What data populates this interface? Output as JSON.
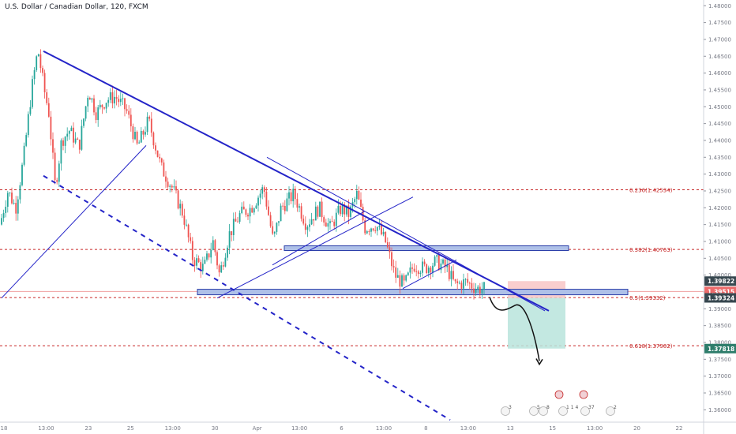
{
  "title": "U.S. Dollar / Canadian Dollar, 120, FXCM",
  "colors": {
    "up": "#26a69a",
    "down": "#ef5350",
    "trend": "#2424c8",
    "fib": "#c62828",
    "zone_fill": "#aec0e8",
    "stop_fill": "#f8c6c6",
    "target_fill": "#b9e4dc",
    "badge_price": "#ec6b6b",
    "badge_level": "#37474f",
    "badge_target": "#2e7d6b"
  },
  "chart_data": {
    "type": "candlestick",
    "title": "U.S. Dollar / Canadian Dollar, 120, FXCM",
    "ylim": [
      1.3575,
      1.481
    ],
    "y_ticks": [
      "1.48000",
      "1.47500",
      "1.47000",
      "1.46500",
      "1.46000",
      "1.45500",
      "1.45000",
      "1.44500",
      "1.44000",
      "1.43500",
      "1.43000",
      "1.42500",
      "1.42000",
      "1.41500",
      "1.41000",
      "1.40500",
      "1.40000",
      "1.39500",
      "1.39000",
      "1.38500",
      "1.38000",
      "1.37500",
      "1.37000",
      "1.36500",
      "1.36000"
    ],
    "x_ticks": [
      "18",
      "13:00",
      "23",
      "25",
      "13:00",
      "30",
      "Apr",
      "13:00",
      "6",
      "13:00",
      "8",
      "13:00",
      "13",
      "15",
      "13:00",
      "20",
      "22"
    ],
    "fib_levels": [
      {
        "label": "0.236(1.42534)",
        "value": 1.42534
      },
      {
        "label": "0.382(1.40763)",
        "value": 1.40763
      },
      {
        "label": "0.5(1.39332)",
        "value": 1.39332
      },
      {
        "label": "0.618(1.37902)",
        "value": 1.37902
      }
    ],
    "price_badges": [
      {
        "label": "1.39822",
        "value": 1.39822,
        "kind": "level"
      },
      {
        "label": "1.39515",
        "value": 1.39515,
        "kind": "price"
      },
      {
        "label": "1.39324",
        "value": 1.39324,
        "kind": "level"
      },
      {
        "label": "1.37818",
        "value": 1.37818,
        "kind": "target"
      }
    ],
    "event_badges": [
      "3",
      "5",
      "8",
      "1 1 4",
      "37",
      "2"
    ],
    "grid": false
  }
}
